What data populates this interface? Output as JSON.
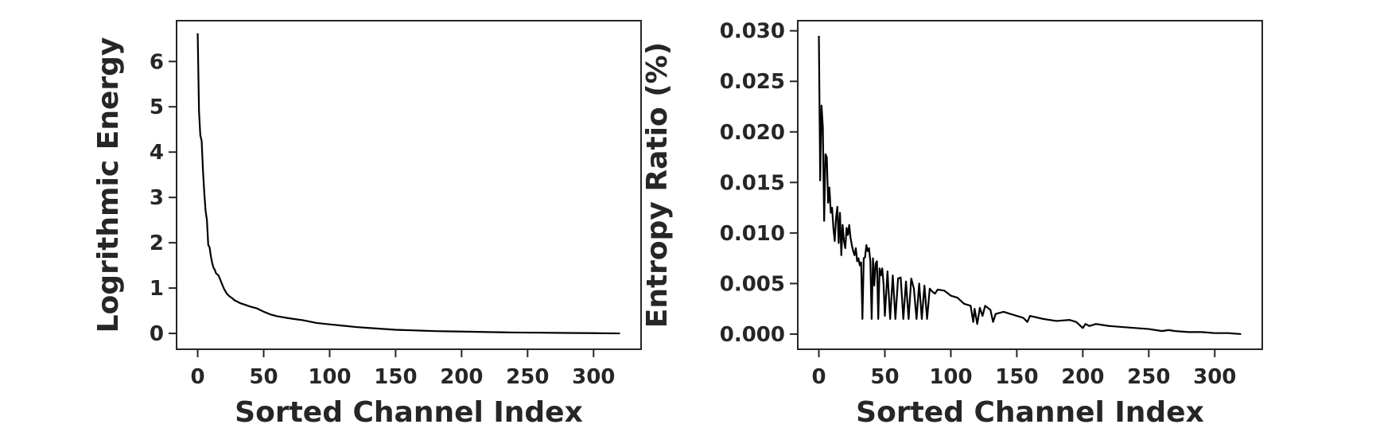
{
  "colors": {
    "axes": "#262626",
    "line": "#000000",
    "background": "#ffffff"
  },
  "chart_data": [
    {
      "type": "line",
      "title": "",
      "xlabel": "Sorted Channel Index",
      "ylabel": "Logrithmic Energy",
      "xlim": [
        -16,
        336
      ],
      "ylim": [
        -0.35,
        6.9
      ],
      "xticks": [
        0,
        50,
        100,
        150,
        200,
        250,
        300
      ],
      "yticks": [
        0,
        1,
        2,
        3,
        4,
        5,
        6
      ],
      "grid": false,
      "legend": "none",
      "series": [
        {
          "x": [
            0,
            1,
            2,
            3,
            4,
            5,
            6,
            7,
            8,
            9,
            10,
            11,
            12,
            13,
            14,
            15,
            16,
            18,
            20,
            22,
            24,
            26,
            28,
            30,
            32,
            35,
            38,
            40,
            45,
            50,
            55,
            60,
            70,
            80,
            90,
            100,
            110,
            120,
            130,
            140,
            150,
            160,
            170,
            180,
            190,
            200,
            220,
            240,
            260,
            280,
            300,
            320
          ],
          "values": [
            6.62,
            4.9,
            4.37,
            4.25,
            3.6,
            3.1,
            2.7,
            2.5,
            1.95,
            1.9,
            1.7,
            1.55,
            1.45,
            1.4,
            1.32,
            1.3,
            1.27,
            1.12,
            0.98,
            0.88,
            0.82,
            0.78,
            0.73,
            0.7,
            0.67,
            0.64,
            0.61,
            0.59,
            0.55,
            0.48,
            0.42,
            0.38,
            0.33,
            0.29,
            0.23,
            0.2,
            0.17,
            0.14,
            0.12,
            0.1,
            0.08,
            0.07,
            0.06,
            0.05,
            0.045,
            0.04,
            0.03,
            0.02,
            0.015,
            0.01,
            0.005,
            0.0
          ]
        }
      ]
    },
    {
      "type": "line",
      "title": "",
      "xlabel": "Sorted Channel Index",
      "ylabel": "Entropy Ratio (%)",
      "xlim": [
        -16,
        336
      ],
      "ylim": [
        -0.0015,
        0.031
      ],
      "xticks": [
        0,
        50,
        100,
        150,
        200,
        250,
        300
      ],
      "yticks": [
        0.0,
        0.005,
        0.01,
        0.015,
        0.02,
        0.025,
        0.03
      ],
      "ytick_labels": [
        "0.000",
        "0.005",
        "0.010",
        "0.015",
        "0.020",
        "0.025",
        "0.030"
      ],
      "grid": false,
      "legend": "none",
      "series": [
        {
          "x": [
            0,
            1,
            2,
            3,
            4,
            5,
            6,
            7,
            8,
            9,
            10,
            11,
            12,
            13,
            14,
            15,
            16,
            17,
            18,
            19,
            20,
            21,
            22,
            23,
            24,
            25,
            26,
            27,
            28,
            29,
            30,
            31,
            32,
            33,
            34,
            35,
            36,
            37,
            38,
            39,
            40,
            41,
            42,
            43,
            44,
            45,
            46,
            47,
            48,
            49,
            50,
            52,
            54,
            56,
            58,
            60,
            62,
            64,
            66,
            68,
            70,
            72,
            74,
            76,
            78,
            80,
            82,
            84,
            86,
            88,
            90,
            95,
            100,
            105,
            110,
            115,
            117,
            118,
            120,
            122,
            124,
            126,
            130,
            132,
            134,
            140,
            150,
            155,
            158,
            160,
            170,
            180,
            190,
            195,
            200,
            202,
            205,
            210,
            220,
            230,
            240,
            250,
            260,
            265,
            270,
            280,
            290,
            300,
            310,
            320
          ],
          "values": [
            0.0295,
            0.0152,
            0.0226,
            0.0205,
            0.0112,
            0.0178,
            0.0175,
            0.013,
            0.0145,
            0.012,
            0.0125,
            0.0105,
            0.0092,
            0.0115,
            0.0126,
            0.009,
            0.012,
            0.0078,
            0.0108,
            0.0092,
            0.0085,
            0.0105,
            0.0098,
            0.0108,
            0.0095,
            0.0088,
            0.0082,
            0.0078,
            0.0085,
            0.0072,
            0.0075,
            0.0068,
            0.0071,
            0.0015,
            0.0075,
            0.0076,
            0.0088,
            0.0082,
            0.0085,
            0.0072,
            0.0015,
            0.0075,
            0.0048,
            0.007,
            0.0072,
            0.0015,
            0.0065,
            0.0058,
            0.0065,
            0.005,
            0.0018,
            0.0062,
            0.0015,
            0.0058,
            0.0015,
            0.0055,
            0.0056,
            0.0015,
            0.0052,
            0.0015,
            0.0055,
            0.0045,
            0.0015,
            0.005,
            0.0015,
            0.0048,
            0.0015,
            0.0045,
            0.0042,
            0.004,
            0.0044,
            0.0043,
            0.0038,
            0.0036,
            0.003,
            0.0028,
            0.0012,
            0.0025,
            0.001,
            0.0026,
            0.0018,
            0.0028,
            0.0024,
            0.0012,
            0.002,
            0.0022,
            0.0018,
            0.0016,
            0.0012,
            0.0018,
            0.0015,
            0.0013,
            0.0014,
            0.0012,
            0.0006,
            0.001,
            0.0008,
            0.001,
            0.0008,
            0.0007,
            0.0006,
            0.0005,
            0.0003,
            0.0004,
            0.0003,
            0.0002,
            0.0002,
            0.0001,
            0.0001,
            0.0
          ]
        }
      ]
    }
  ]
}
